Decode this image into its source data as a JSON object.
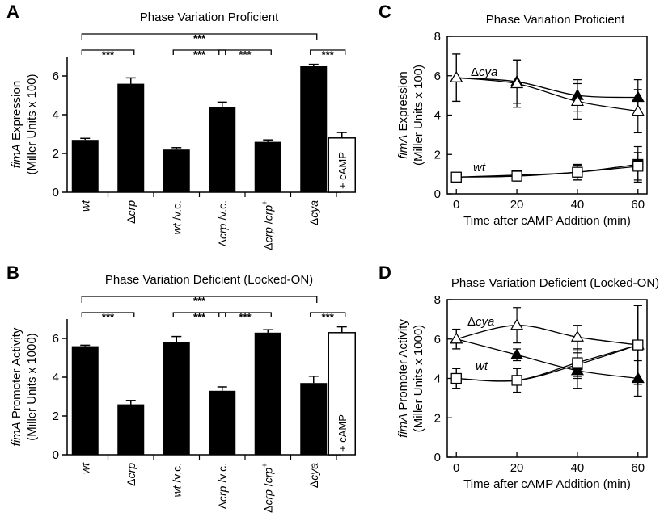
{
  "chart_data": [
    {
      "panel": "A",
      "type": "bar",
      "title": "Phase Variation Proficient",
      "ylabel_italic": "fimA",
      "ylabel": " Expression",
      "ylabel2": "(Miller Units x 100)",
      "ylim": [
        0,
        7
      ],
      "yticks": [
        0,
        2,
        4,
        6
      ],
      "categories": [
        "wt",
        "Δcrp",
        "wt /v.c.",
        "Δcrp /v.c.",
        "Δcrp /crp+",
        "Δcya"
      ],
      "values": [
        2.7,
        5.6,
        2.2,
        4.4,
        2.6,
        6.5
      ],
      "errors": [
        0.08,
        0.3,
        0.1,
        0.25,
        0.1,
        0.1
      ],
      "extra_bar": {
        "category": "Δcya",
        "value": 2.8,
        "error": 0.28,
        "label": "+ cAMP"
      },
      "significance": [
        "***",
        "***",
        "***",
        "***",
        "***",
        "***"
      ]
    },
    {
      "panel": "B",
      "type": "bar",
      "title": "Phase Variation Deficient (Locked-ON)",
      "ylabel_italic": "fimA",
      "ylabel": " Promoter Activity",
      "ylabel2": "(Miller Units x 1000)",
      "ylim": [
        0,
        7
      ],
      "yticks": [
        0,
        2,
        4,
        6
      ],
      "categories": [
        "wt",
        "Δcrp",
        "wt /v.c.",
        "Δcrp /v.c.",
        "Δcrp /crp+",
        "Δcya"
      ],
      "values": [
        5.6,
        2.6,
        5.8,
        3.3,
        6.3,
        3.7
      ],
      "errors": [
        0.05,
        0.2,
        0.3,
        0.2,
        0.15,
        0.35
      ],
      "extra_bar": {
        "category": "Δcya",
        "value": 6.3,
        "error": 0.3,
        "label": "+ cAMP"
      },
      "significance": [
        "***",
        "***",
        "***",
        "***",
        "***",
        "***"
      ]
    },
    {
      "panel": "C",
      "type": "line",
      "title": "Phase Variation Proficient",
      "ylabel_italic": "fimA",
      "ylabel": " Expression",
      "ylabel2": "(Miller Units x 100)",
      "xlabel": "Time after cAMP Addition (min)",
      "xlim": [
        -3,
        63
      ],
      "ylim": [
        0,
        8
      ],
      "xticks": [
        0,
        20,
        40,
        60
      ],
      "yticks": [
        0,
        2,
        4,
        6,
        8
      ],
      "x": [
        0,
        20,
        40,
        60
      ],
      "series": [
        {
          "label": "Δcya",
          "marker": "filled-triangle",
          "values": [
            5.9,
            5.7,
            5.0,
            4.9
          ],
          "errors": [
            1.2,
            1.1,
            0.8,
            0.9
          ]
        },
        {
          "label": "Δcya",
          "marker": "open-triangle",
          "values": [
            5.9,
            5.6,
            4.7,
            4.2
          ],
          "errors": [
            1.2,
            1.2,
            0.9,
            1.1
          ]
        },
        {
          "label": "wt",
          "marker": "filled-square",
          "values": [
            0.85,
            0.95,
            1.1,
            1.5
          ],
          "errors": [
            0.2,
            0.25,
            0.4,
            0.9
          ]
        },
        {
          "label": "wt",
          "marker": "open-square",
          "values": [
            0.85,
            0.9,
            1.1,
            1.4
          ],
          "errors": [
            0.2,
            0.25,
            0.35,
            0.7
          ]
        }
      ],
      "annotations": [
        "Δcya",
        "wt"
      ]
    },
    {
      "panel": "D",
      "type": "line",
      "title": "Phase Variation Deficient (Locked-ON)",
      "ylabel_italic": "fimA",
      "ylabel": " Promoter Activity",
      "ylabel2": "(Miller Units x 1000)",
      "xlabel": "Time after cAMP Addition (min)",
      "xlim": [
        -3,
        63
      ],
      "ylim": [
        0,
        8
      ],
      "xticks": [
        0,
        20,
        40,
        60
      ],
      "yticks": [
        0,
        2,
        4,
        6,
        8
      ],
      "x": [
        0,
        20,
        40,
        60
      ],
      "series": [
        {
          "label": "Δcya",
          "marker": "filled-triangle",
          "values": [
            6.0,
            5.2,
            4.4,
            4.0
          ],
          "errors": [
            0.5,
            0.3,
            0.9,
            0.9
          ]
        },
        {
          "label": "Δcya",
          "marker": "open-triangle",
          "values": [
            6.0,
            6.7,
            6.1,
            5.7
          ],
          "errors": [
            0.5,
            0.9,
            0.6,
            2.0
          ]
        },
        {
          "label": "wt",
          "marker": "filled-square",
          "values": [
            4.0,
            3.9,
            4.7,
            5.7
          ],
          "errors": [
            0.5,
            0.6,
            0.7,
            2.0
          ]
        },
        {
          "label": "wt",
          "marker": "open-square",
          "values": [
            4.0,
            3.9,
            4.8,
            5.7
          ],
          "errors": [
            0.5,
            0.6,
            0.7,
            2.0
          ]
        }
      ],
      "annotations": [
        "Δcya",
        "wt"
      ]
    }
  ],
  "panel_labels": [
    "A",
    "B",
    "C",
    "D"
  ]
}
